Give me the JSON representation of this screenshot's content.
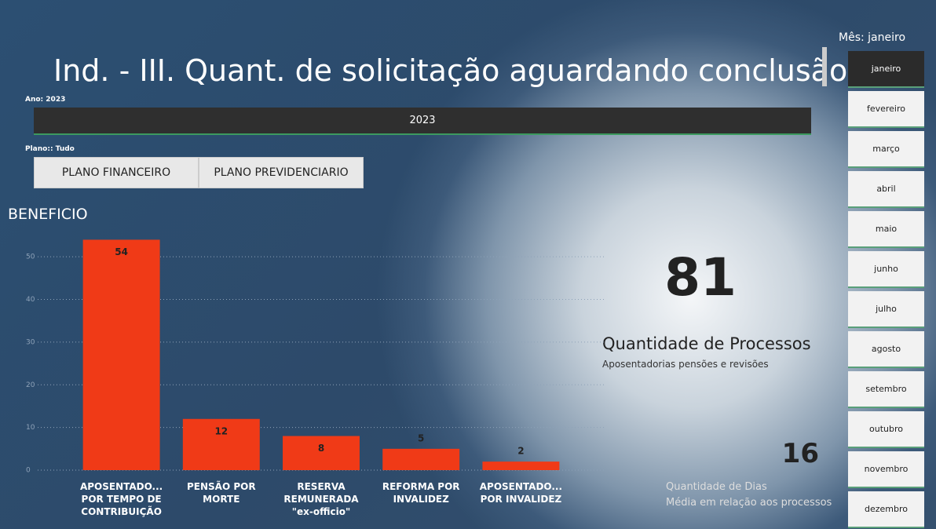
{
  "title": "Ind. - III. Quant. de solicitação aguardando conclusão",
  "year_filter": {
    "label": "Ano: 2023",
    "value": "2023"
  },
  "plan_filter": {
    "label": "Plano:: Tudo",
    "options": [
      "PLANO FINANCEIRO",
      "PLANO PREVIDENCIARIO"
    ]
  },
  "month_filter": {
    "label": "Mês: janeiro",
    "options": [
      "janeiro",
      "fevereiro",
      "março",
      "abril",
      "maio",
      "junho",
      "julho",
      "agosto",
      "setembro",
      "outubro",
      "novembro",
      "dezembro"
    ]
  },
  "chart_data": {
    "type": "bar",
    "title": "BENEFICIO",
    "categories": [
      "APOSENTADO... POR TEMPO DE CONTRIBUIÇÃO",
      "PENSÃO POR MORTE",
      "RESERVA REMUNERADA \"ex-officio\"",
      "REFORMA POR INVALIDEZ",
      "APOSENTADO... POR INVALIDEZ"
    ],
    "values": [
      54,
      12,
      8,
      5,
      2
    ],
    "color": "#f03a17",
    "ylim": [
      0,
      55
    ],
    "yticks": [
      0,
      10,
      20,
      30,
      40,
      50
    ],
    "grid": true
  },
  "kpis": [
    {
      "value": "81",
      "label": "Quantidade de Processos",
      "sublabel": "Aposentadorias pensões e revisões"
    },
    {
      "value": "16",
      "label": "Quantidade de Dias",
      "sublabel": "Média em relação aos processos"
    }
  ]
}
